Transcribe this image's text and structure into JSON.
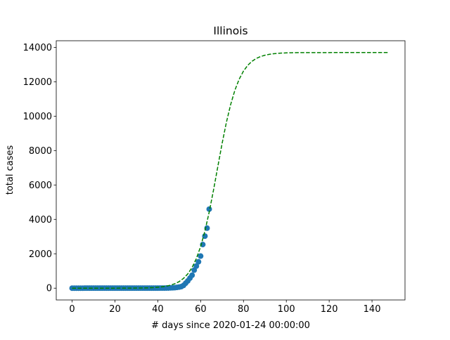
{
  "chart_data": {
    "type": "scatter",
    "title": "Illinois",
    "xlabel": "# days since 2020-01-24 00:00:00",
    "ylabel": "total cases",
    "xlim": [
      -7.4,
      155.4
    ],
    "ylim": [
      -685,
      14385
    ],
    "xticks": [
      0,
      20,
      40,
      60,
      80,
      100,
      120,
      140
    ],
    "yticks": [
      0,
      2000,
      4000,
      6000,
      8000,
      10000,
      12000,
      14000
    ],
    "grid": false,
    "series": [
      {
        "kind": "scatter",
        "color": "#1f77b4",
        "x": [
          0,
          1,
          2,
          3,
          4,
          5,
          6,
          7,
          8,
          9,
          10,
          11,
          12,
          13,
          14,
          15,
          16,
          17,
          18,
          19,
          20,
          21,
          22,
          23,
          24,
          25,
          26,
          27,
          28,
          29,
          30,
          31,
          32,
          33,
          34,
          35,
          36,
          37,
          38,
          39,
          40,
          41,
          42,
          43,
          44,
          45,
          46,
          47,
          48,
          49,
          50,
          51,
          52,
          53,
          54,
          55,
          56,
          57,
          58,
          59,
          60,
          61,
          62,
          63,
          64
        ],
        "values": [
          1,
          1,
          1,
          1,
          1,
          1,
          2,
          2,
          2,
          2,
          2,
          2,
          2,
          2,
          2,
          2,
          2,
          2,
          2,
          2,
          2,
          2,
          2,
          2,
          2,
          2,
          2,
          2,
          2,
          2,
          2,
          2,
          2,
          2,
          2,
          2,
          3,
          3,
          4,
          4,
          4,
          5,
          5,
          6,
          7,
          11,
          19,
          25,
          32,
          46,
          64,
          93,
          160,
          288,
          422,
          585,
          753,
          1049,
          1285,
          1535,
          1865,
          2538,
          3026,
          3491,
          4596
        ]
      },
      {
        "kind": "line",
        "color": "#008000",
        "dash": true,
        "x": [
          0,
          2,
          4,
          6,
          8,
          10,
          12,
          14,
          16,
          18,
          20,
          22,
          24,
          26,
          28,
          30,
          32,
          34,
          36,
          38,
          40,
          42,
          44,
          46,
          48,
          50,
          52,
          54,
          56,
          58,
          60,
          62,
          64,
          66,
          68,
          70,
          72,
          74,
          76,
          78,
          80,
          82,
          84,
          86,
          88,
          90,
          92,
          94,
          96,
          98,
          100,
          102,
          104,
          106,
          108,
          110,
          112,
          114,
          116,
          118,
          120,
          122,
          124,
          126,
          128,
          130,
          132,
          134,
          136,
          138,
          140,
          142,
          144,
          146,
          148
        ],
        "values": [
          0,
          0,
          0,
          0,
          0,
          0,
          0,
          0,
          0,
          1,
          1,
          2,
          2,
          3,
          5,
          7,
          11,
          16,
          24,
          36,
          54,
          80,
          119,
          176,
          261,
          385,
          568,
          830,
          1199,
          1721,
          2420,
          3320,
          4425,
          5696,
          7055,
          8400,
          9627,
          10672,
          11512,
          12151,
          12622,
          12958,
          13193,
          13357,
          13468,
          13543,
          13595,
          13629,
          13652,
          13668,
          13679,
          13686,
          13691,
          13694,
          13696,
          13697,
          13698,
          13698,
          13698,
          13698,
          13698,
          13699,
          13699,
          13699,
          13699,
          13699,
          13699,
          13699,
          13700,
          13700,
          13700,
          13700,
          13700,
          13700,
          13700
        ]
      }
    ]
  }
}
